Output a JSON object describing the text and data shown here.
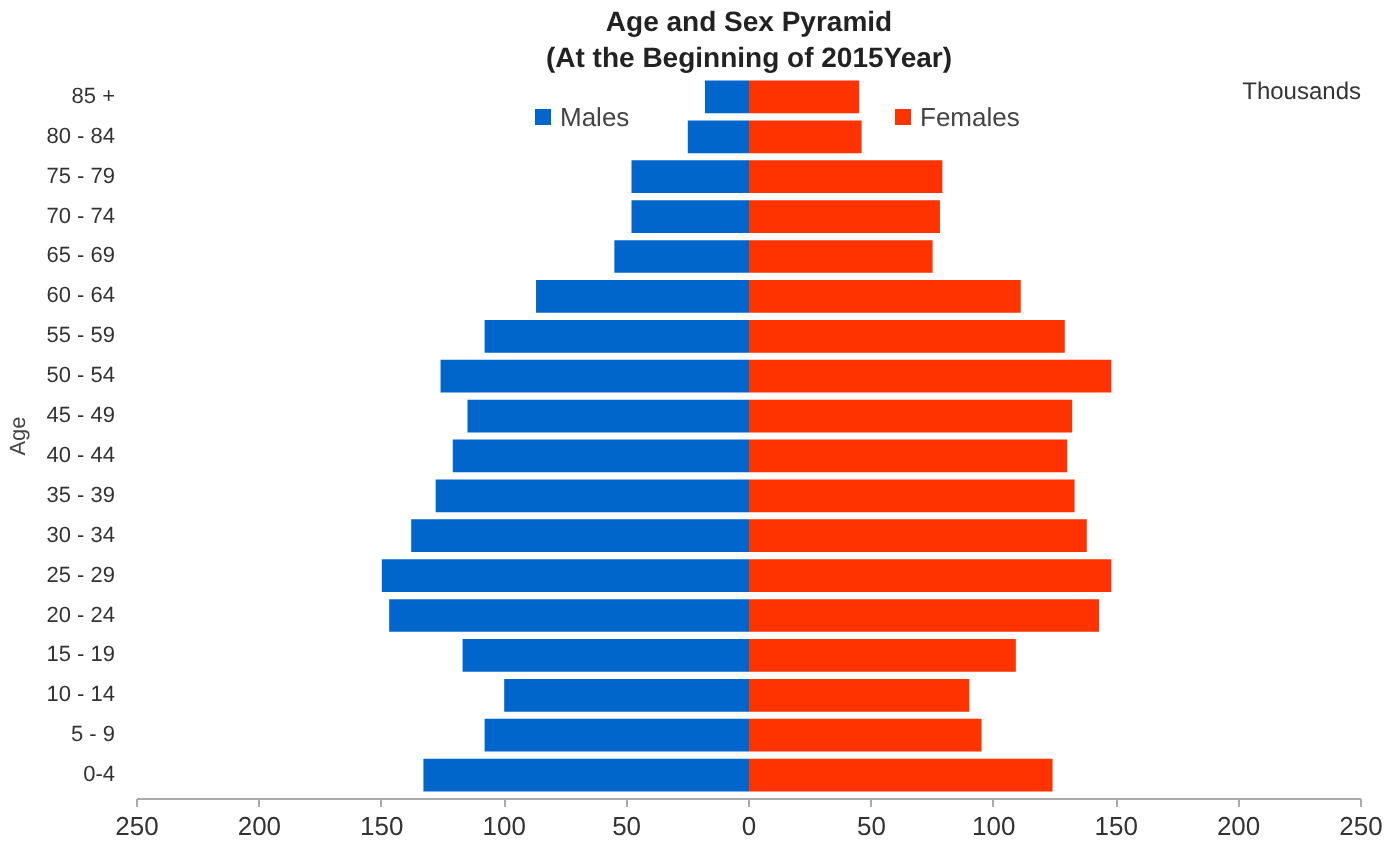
{
  "chart_data": {
    "type": "bar",
    "orientation": "horizontal",
    "title": "Age and Sex Pyramid",
    "subtitle": "(At the Beginning of 2015Year)",
    "ylabel": "Age",
    "annotations": [
      "Thousands"
    ],
    "categories": [
      "85 +",
      "80 - 84",
      "75 - 79",
      "70 - 74",
      "65 - 69",
      "60 - 64",
      "55 - 59",
      "50 - 54",
      "45 - 49",
      "40 - 44",
      "35 - 39",
      "30 - 34",
      "25 - 29",
      "20 - 24",
      "15 - 19",
      "10 - 14",
      "5 - 9",
      "0-4"
    ],
    "series": [
      {
        "name": "Males",
        "color": "#0066cc",
        "values": [
          -18,
          -25,
          -48,
          -48,
          -55,
          -87,
          -108,
          -126,
          -115,
          -121,
          -128,
          -138,
          -150,
          -147,
          -117,
          -100,
          -108,
          -133
        ]
      },
      {
        "name": "Females",
        "color": "#ff3300",
        "values": [
          45,
          46,
          79,
          78,
          75,
          111,
          129,
          148,
          132,
          130,
          133,
          138,
          148,
          143,
          109,
          90,
          95,
          124
        ]
      }
    ],
    "xlim": [
      -250,
      250
    ],
    "xticks": [
      {
        "value": -250,
        "label": "250"
      },
      {
        "value": -200,
        "label": "200"
      },
      {
        "value": -150,
        "label": "150"
      },
      {
        "value": -100,
        "label": "100"
      },
      {
        "value": -50,
        "label": "50"
      },
      0,
      50,
      100,
      150,
      200,
      250
    ],
    "grid": false,
    "legend": "top",
    "stacked": true
  }
}
